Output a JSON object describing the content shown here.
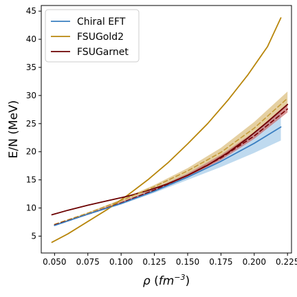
{
  "chart_data": {
    "type": "line",
    "xlabel_symbol": "ρ",
    "xlabel_unit_base": "fm",
    "xlabel_unit_exp": "−3",
    "ylabel": "E/N (MeV)",
    "xlim": [
      0.04,
      0.228
    ],
    "ylim": [
      2.0,
      46.0
    ],
    "x_ticks": [
      0.05,
      0.075,
      0.1,
      0.125,
      0.15,
      0.175,
      0.2,
      0.225
    ],
    "x_tick_labels": [
      "0.050",
      "0.075",
      "0.100",
      "0.125",
      "0.150",
      "0.175",
      "0.200",
      "0.225"
    ],
    "y_ticks": [
      5,
      10,
      15,
      20,
      25,
      30,
      35,
      40,
      45
    ],
    "y_tick_labels": [
      "5",
      "10",
      "15",
      "20",
      "25",
      "30",
      "35",
      "40",
      "45"
    ],
    "legend_position": "top-left",
    "legend": [
      {
        "name": "Chiral EFT",
        "color": "#3a7fc1"
      },
      {
        "name": "FSUGold2",
        "color": "#b8860b"
      },
      {
        "name": "FSUGarnet",
        "color": "#6b0000"
      }
    ],
    "bands": [
      {
        "color": "#a9cdea",
        "x": [
          0.05,
          0.075,
          0.1,
          0.125,
          0.15,
          0.175,
          0.2,
          0.22
        ],
        "lower": [
          6.9,
          8.8,
          10.6,
          12.7,
          15.0,
          17.3,
          19.8,
          22.0
        ],
        "upper": [
          6.9,
          8.9,
          11.0,
          13.5,
          16.3,
          19.5,
          23.5,
          27.2
        ]
      },
      {
        "color": "#dcc081",
        "x": [
          0.05,
          0.075,
          0.1,
          0.125,
          0.15,
          0.175,
          0.2,
          0.225
        ],
        "lower": [
          7.0,
          9.0,
          11.1,
          13.4,
          16.0,
          19.0,
          23.2,
          28.2
        ],
        "upper": [
          7.1,
          9.2,
          11.5,
          14.1,
          17.1,
          20.7,
          25.3,
          30.7
        ]
      },
      {
        "color": "#c97070",
        "x": [
          0.05,
          0.075,
          0.1,
          0.125,
          0.15,
          0.175,
          0.2,
          0.225
        ],
        "lower": [
          6.9,
          8.8,
          10.8,
          13.0,
          15.5,
          18.5,
          22.3,
          27.0
        ],
        "upper": [
          7.0,
          9.0,
          11.1,
          13.4,
          16.1,
          19.4,
          23.5,
          28.6
        ]
      }
    ],
    "series": [
      {
        "name": "Chiral EFT",
        "color": "#3a7fc1",
        "style": "solid",
        "x": [
          0.05,
          0.075,
          0.1,
          0.125,
          0.15,
          0.175,
          0.2,
          0.22
        ],
        "y": [
          6.9,
          8.9,
          10.8,
          13.0,
          15.5,
          18.3,
          21.5,
          24.4
        ]
      },
      {
        "name": "FSUGold2",
        "color": "#b8860b",
        "style": "solid",
        "x": [
          0.048,
          0.06,
          0.075,
          0.09,
          0.105,
          0.12,
          0.135,
          0.15,
          0.165,
          0.18,
          0.195,
          0.21,
          0.22
        ],
        "y": [
          3.9,
          5.4,
          7.6,
          9.8,
          12.3,
          15.0,
          18.0,
          21.4,
          25.0,
          29.1,
          33.6,
          38.7,
          43.8
        ]
      },
      {
        "name": "FSUGarnet",
        "color": "#6b0000",
        "style": "solid",
        "x": [
          0.048,
          0.06,
          0.075,
          0.09,
          0.105,
          0.12,
          0.135,
          0.15,
          0.165,
          0.18,
          0.195,
          0.21,
          0.225
        ],
        "y": [
          8.8,
          9.6,
          10.5,
          11.3,
          12.1,
          13.1,
          14.3,
          15.8,
          17.6,
          19.8,
          22.4,
          25.3,
          28.4
        ]
      },
      {
        "name": "",
        "color": "#c49a3a",
        "style": "dashed",
        "x": [
          0.05,
          0.075,
          0.1,
          0.125,
          0.15,
          0.175,
          0.2,
          0.225
        ],
        "y": [
          7.1,
          9.1,
          11.3,
          13.8,
          16.6,
          19.9,
          24.2,
          29.5
        ]
      },
      {
        "name": "",
        "color": "#7a0000",
        "style": "dashed",
        "x": [
          0.05,
          0.075,
          0.1,
          0.125,
          0.15,
          0.175,
          0.2,
          0.225
        ],
        "y": [
          7.0,
          8.9,
          10.9,
          13.2,
          15.8,
          18.9,
          22.8,
          27.6
        ]
      },
      {
        "name": "",
        "color": "#3a7fc1",
        "style": "dashed",
        "x": [
          0.05,
          0.075,
          0.1,
          0.125,
          0.15
        ],
        "y": [
          6.9,
          8.9,
          10.8,
          13.0,
          15.5
        ]
      }
    ]
  }
}
